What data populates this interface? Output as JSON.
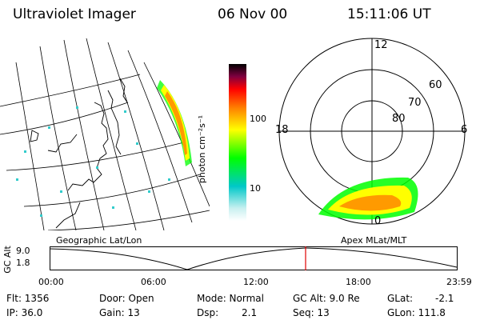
{
  "header": {
    "title": "Ultraviolet Imager",
    "date": "06 Nov 00",
    "time": "15:11:06 UT"
  },
  "colorbar": {
    "unit_label": "photon cm⁻²s⁻¹",
    "ticks": [
      "100",
      "10"
    ]
  },
  "polar": {
    "mlt_labels": [
      "12",
      "18",
      "6",
      "0"
    ],
    "lat_labels": [
      "60",
      "70",
      "80"
    ]
  },
  "panels": {
    "left_caption": "Geographic Lat/Lon",
    "right_caption": "Apex MLat/MLT"
  },
  "altitude_plot": {
    "ylabel": "GC Alt",
    "yticks": [
      "9.0",
      "1.8"
    ],
    "xticks": [
      "00:00",
      "06:00",
      "12:00",
      "18:00",
      "23:59"
    ]
  },
  "status": {
    "flt": "Flt: 1356",
    "ip": "IP: 36.0",
    "door": "Door: Open",
    "gain": "Gain: 13",
    "mode": "Mode: Normal",
    "dsp": "Dsp:",
    "dsp_value": "2.1",
    "gcalt": "GC Alt: 9.0 Re",
    "seq": "Seq: 13",
    "glat_label": "GLat:",
    "glat_value": "-2.1",
    "glon": "GLon: 111.8"
  },
  "colors": {
    "colorbar_stops": [
      "#ffffff",
      "#00c8c8",
      "#00ff00",
      "#ffff00",
      "#ff8000",
      "#ff0000",
      "#800000",
      "#000000"
    ],
    "cursor": "#e00000"
  }
}
